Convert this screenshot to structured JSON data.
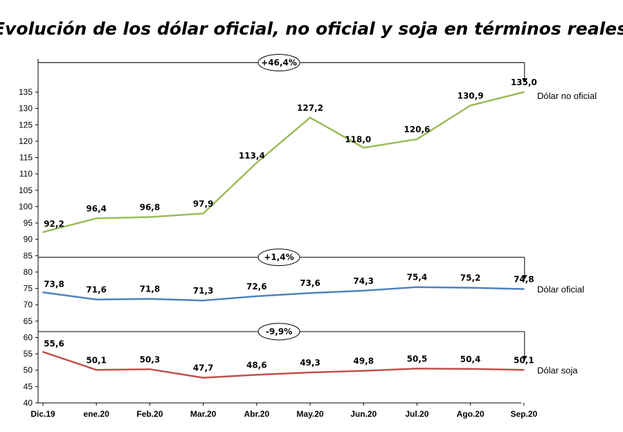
{
  "chart_data": {
    "type": "line",
    "title": "Evolución de los dólar oficial, no oficial y soja en términos reales",
    "categories": [
      "Dic.19",
      "ene.20",
      "Feb.20",
      "Mar.20",
      "Abr.20",
      "May.20",
      "Jun.20",
      "Jul.20",
      "Ago.20",
      "Sep.20"
    ],
    "series": [
      {
        "name": "Dólar no oficial",
        "color": "#9bbb59",
        "values": [
          92.2,
          96.4,
          96.8,
          97.9,
          113.4,
          127.2,
          118.0,
          120.6,
          130.9,
          135.0
        ],
        "labels": [
          "92,2",
          "96,4",
          "96,8",
          "97,9",
          "113,4",
          "127,2",
          "118,0",
          "120,6",
          "130,9",
          "135,0"
        ]
      },
      {
        "name": "Dólar oficial",
        "color": "#4f81bd",
        "values": [
          73.8,
          71.6,
          71.8,
          71.3,
          72.6,
          73.6,
          74.3,
          75.4,
          75.2,
          74.8
        ],
        "labels": [
          "73,8",
          "71,6",
          "71,8",
          "71,3",
          "72,6",
          "73,6",
          "74,3",
          "75,4",
          "75,2",
          "74,8"
        ]
      },
      {
        "name": "Dólar soja",
        "color": "#c0504d",
        "values": [
          55.6,
          50.1,
          50.3,
          47.7,
          48.6,
          49.3,
          49.8,
          50.5,
          50.4,
          50.1
        ],
        "labels": [
          "55,6",
          "50,1",
          "50,3",
          "47,7",
          "48,6",
          "49,3",
          "49,8",
          "50,5",
          "50,4",
          "50,1"
        ]
      }
    ],
    "ylim": [
      40,
      135
    ],
    "yticks": [
      40,
      45,
      50,
      55,
      60,
      65,
      70,
      75,
      80,
      85,
      90,
      95,
      100,
      105,
      110,
      115,
      120,
      125,
      130,
      135
    ],
    "annotations": [
      {
        "text": "+46,4%",
        "series": 0
      },
      {
        "text": "+1,4%",
        "series": 1
      },
      {
        "text": "-9,9%",
        "series": 2
      }
    ],
    "grid": false,
    "legend": "inline-right"
  }
}
